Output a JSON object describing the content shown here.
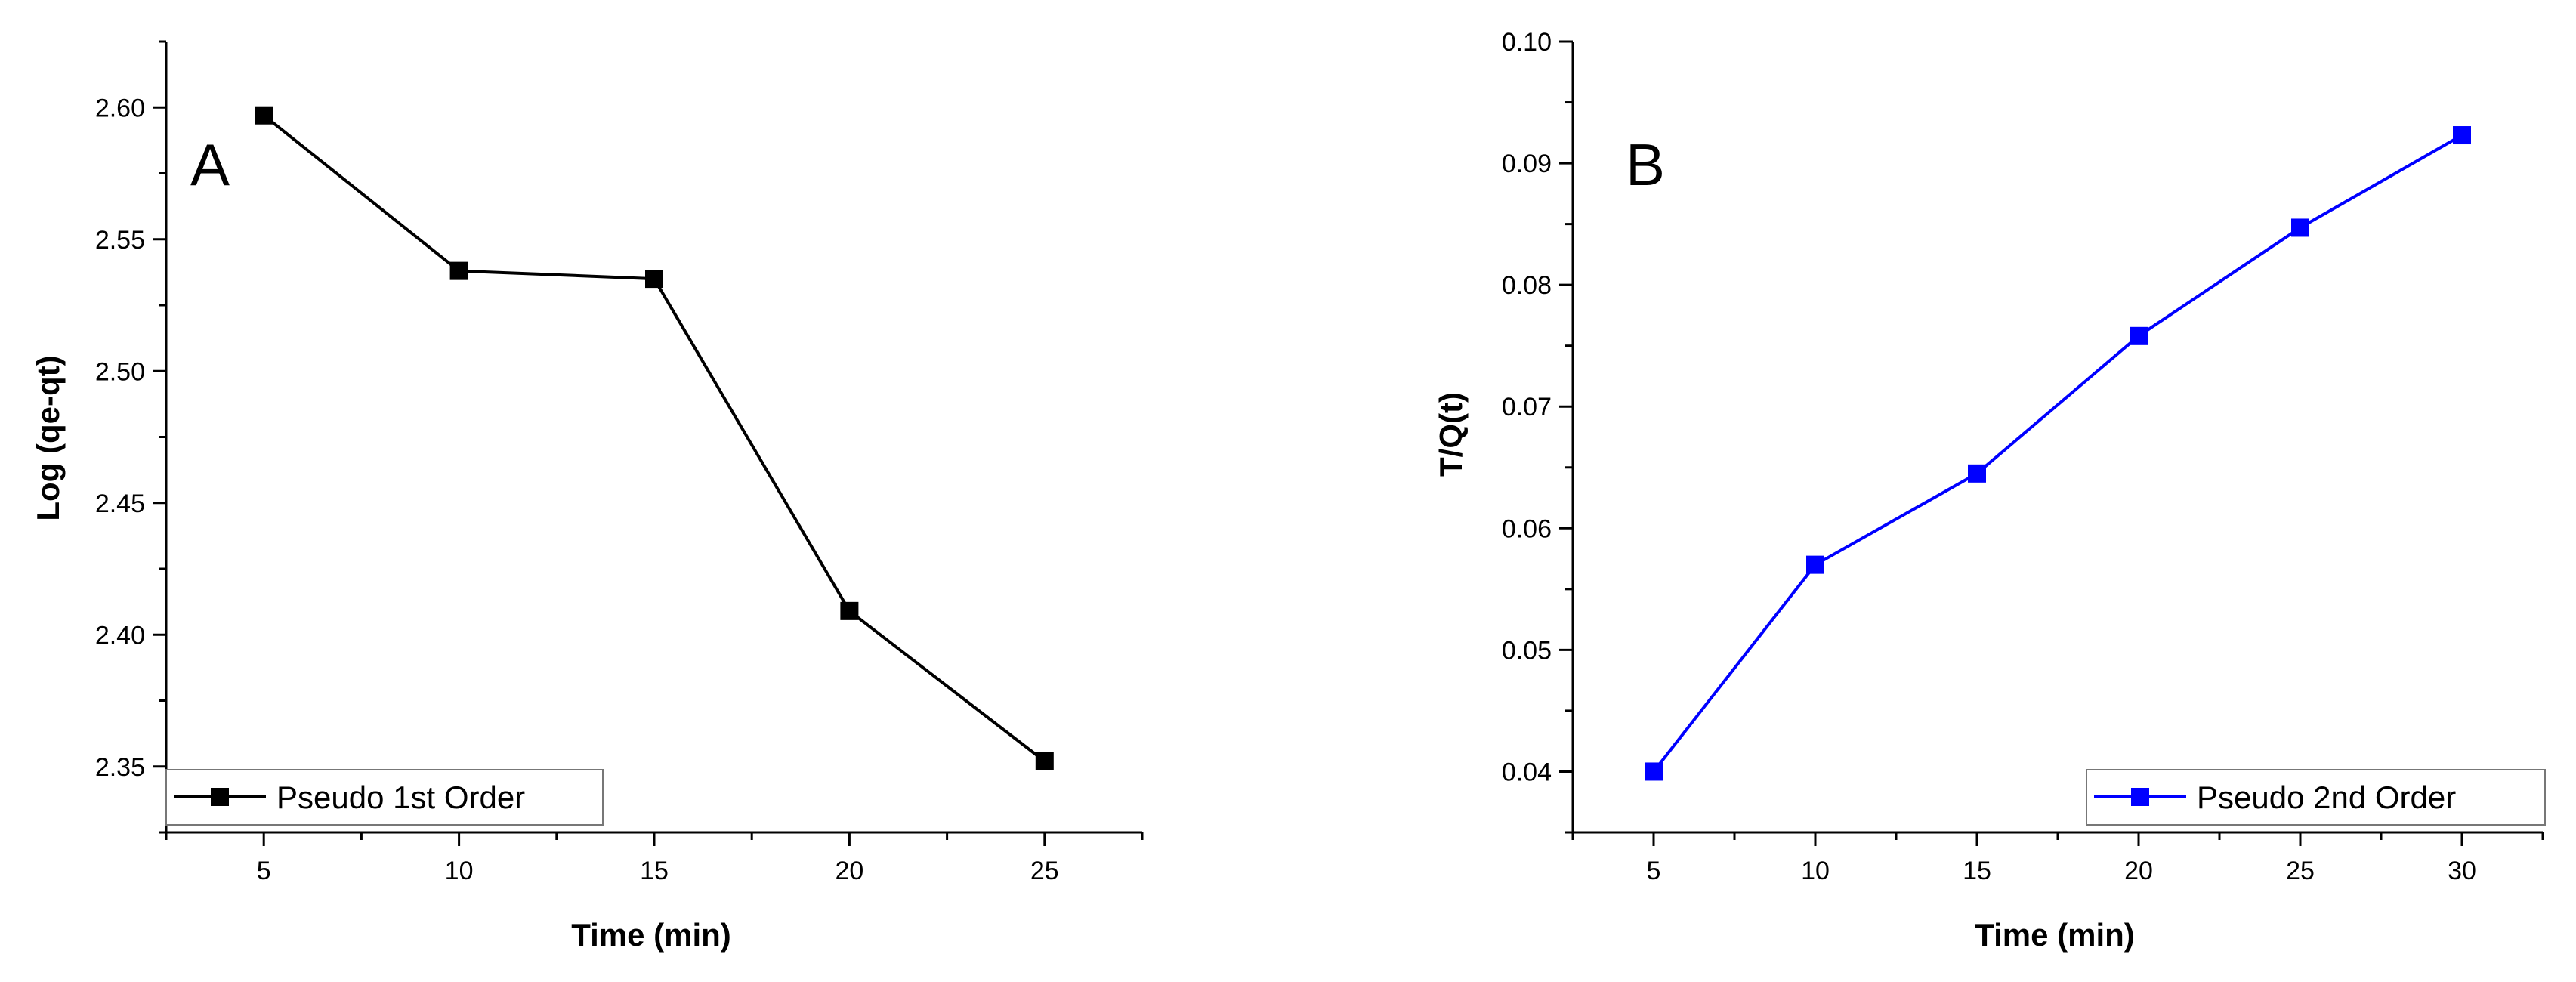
{
  "chart_data": [
    {
      "type": "line",
      "panel_label": "A",
      "title": "",
      "xlabel": "Time (min)",
      "ylabel": "Log (qe-qt)",
      "xlim": [
        2.5,
        27.5
      ],
      "ylim": [
        2.325,
        2.625
      ],
      "xticks": [
        "5",
        "10",
        "15",
        "20",
        "25"
      ],
      "yticks": [
        "2.35",
        "2.40",
        "2.45",
        "2.50",
        "2.55",
        "2.60"
      ],
      "legend_position": "bottom-left",
      "series": [
        {
          "name": "Pseudo 1st Order",
          "color": "#000000",
          "marker": "square",
          "x": [
            5,
            10,
            15,
            20,
            25
          ],
          "y": [
            2.597,
            2.538,
            2.535,
            2.409,
            2.352
          ]
        }
      ]
    },
    {
      "type": "line",
      "panel_label": "B",
      "title": "",
      "xlabel": "Time (min)",
      "ylabel": "T/Q(t)",
      "xlim": [
        2.5,
        32.5
      ],
      "ylim": [
        0.035,
        0.1
      ],
      "xticks": [
        "5",
        "10",
        "15",
        "20",
        "25",
        "30"
      ],
      "yticks": [
        "0.04",
        "0.05",
        "0.06",
        "0.07",
        "0.08",
        "0.09",
        "0.10"
      ],
      "legend_position": "bottom-right",
      "series": [
        {
          "name": "Pseudo 2nd Order",
          "color": "#0000ff",
          "marker": "square",
          "x": [
            5,
            10,
            15,
            20,
            25,
            30
          ],
          "y": [
            0.04,
            0.057,
            0.0645,
            0.0758,
            0.0847,
            0.0923
          ]
        }
      ]
    }
  ]
}
